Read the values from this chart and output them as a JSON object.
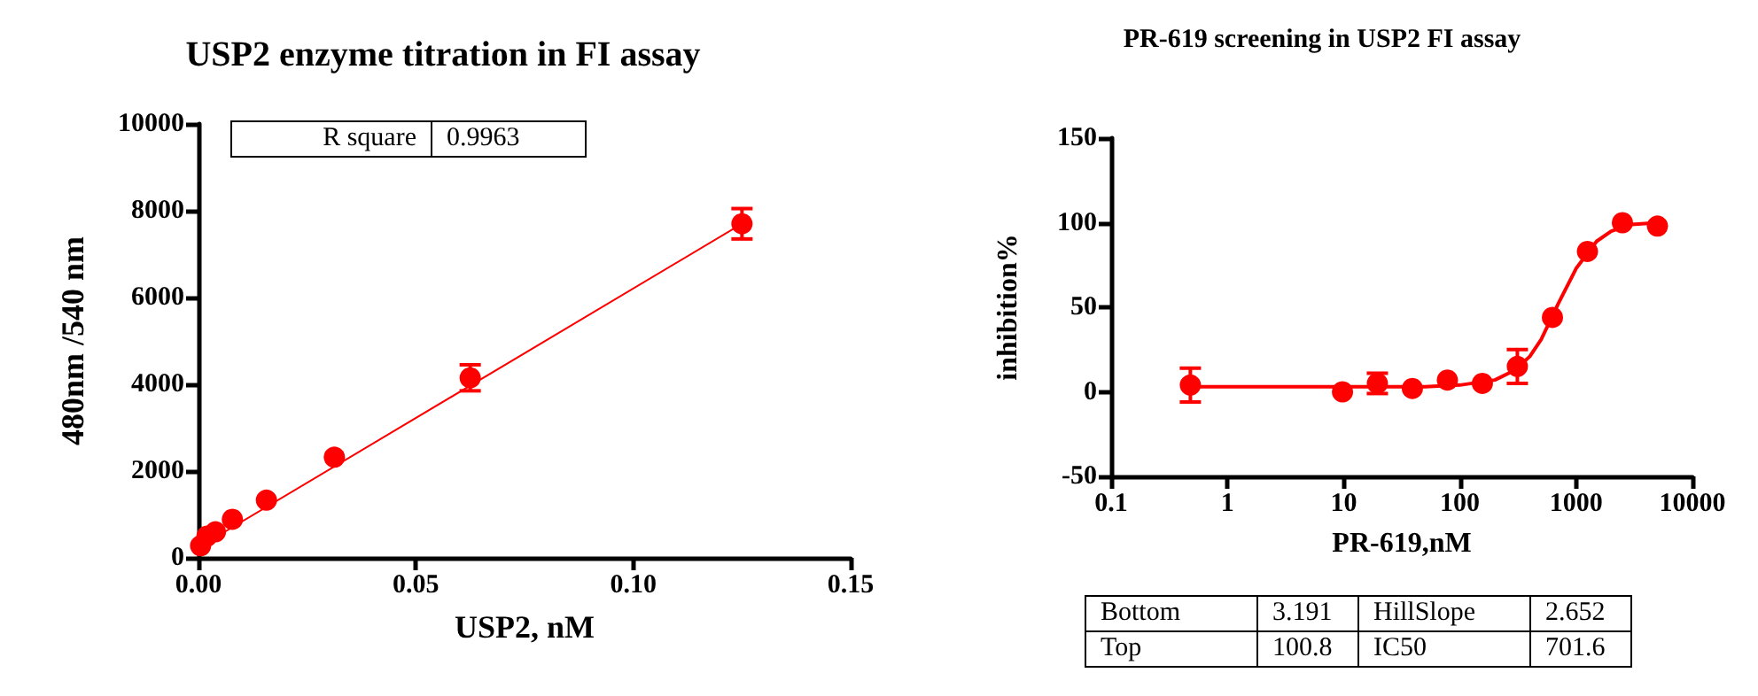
{
  "chart_data": [
    {
      "type": "scatter",
      "title": "USP2 enzyme titration in FI assay",
      "xlabel": "USP2, nM",
      "ylabel": "480nm /540 nm",
      "annotations": [
        "R square",
        "0.9963"
      ],
      "xlim": [
        0,
        0.15
      ],
      "xticks": [
        {
          "value": 0,
          "label": "0.00"
        },
        {
          "value": 0.05,
          "label": "0.05"
        },
        {
          "value": 0.1,
          "label": "0.10"
        },
        {
          "value": 0.15,
          "label": "0.15"
        }
      ],
      "ylim": [
        0,
        10000
      ],
      "yticks": [
        0,
        2000,
        4000,
        6000,
        8000,
        10000
      ],
      "grid": false,
      "series": [
        {
          "type": "line",
          "color": "#ff0000",
          "marker": "none",
          "x": [
            0.0005,
            0.125
          ],
          "values": [
            270,
            7700
          ]
        },
        {
          "color": "#ff0000",
          "marker": "circle",
          "x": [
            0.00049,
            0.00195,
            0.0039,
            0.0078,
            0.015625,
            0.03125,
            0.0625,
            0.125
          ],
          "values": [
            280,
            500,
            600,
            890,
            1330,
            2320,
            4150,
            7700
          ],
          "errors": [
            null,
            null,
            null,
            null,
            null,
            null,
            300,
            350
          ]
        }
      ]
    },
    {
      "type": "scatter",
      "title": "PR-619 screening in USP2 FI assay",
      "xlabel": "PR-619,nM",
      "ylabel": "inhibition%",
      "annotations": [
        "Bottom",
        "3.191",
        "HillSlope",
        "2.652",
        "Top",
        "100.8",
        "IC50",
        "701.6"
      ],
      "log": "x",
      "xlim": [
        0.1,
        10000
      ],
      "xticks": [
        0.1,
        1,
        10,
        100,
        1000,
        10000
      ],
      "ylim": [
        -50,
        150
      ],
      "yticks": [
        -50,
        0,
        50,
        100,
        150
      ],
      "grid": false,
      "series": [
        {
          "type": "line",
          "color": "#ff0000",
          "marker": "none",
          "x": [
            0.5,
            50,
            100,
            200,
            300,
            400,
            500,
            700,
            1000,
            1500,
            2000,
            3000,
            5000
          ],
          "values": [
            3,
            3,
            4,
            7,
            13,
            21,
            31,
            52,
            73,
            89,
            95,
            99,
            100
          ]
        },
        {
          "color": "#ff0000",
          "marker": "circle",
          "x": [
            0.48,
            9.77,
            19.5,
            39,
            78,
            156,
            312,
            625,
            1250,
            2500,
            5000
          ],
          "values": [
            4,
            0,
            5,
            2,
            7,
            5,
            15,
            44,
            83,
            100,
            98
          ],
          "errors": [
            10,
            null,
            6,
            null,
            null,
            null,
            10,
            null,
            null,
            null,
            null
          ]
        }
      ]
    }
  ]
}
